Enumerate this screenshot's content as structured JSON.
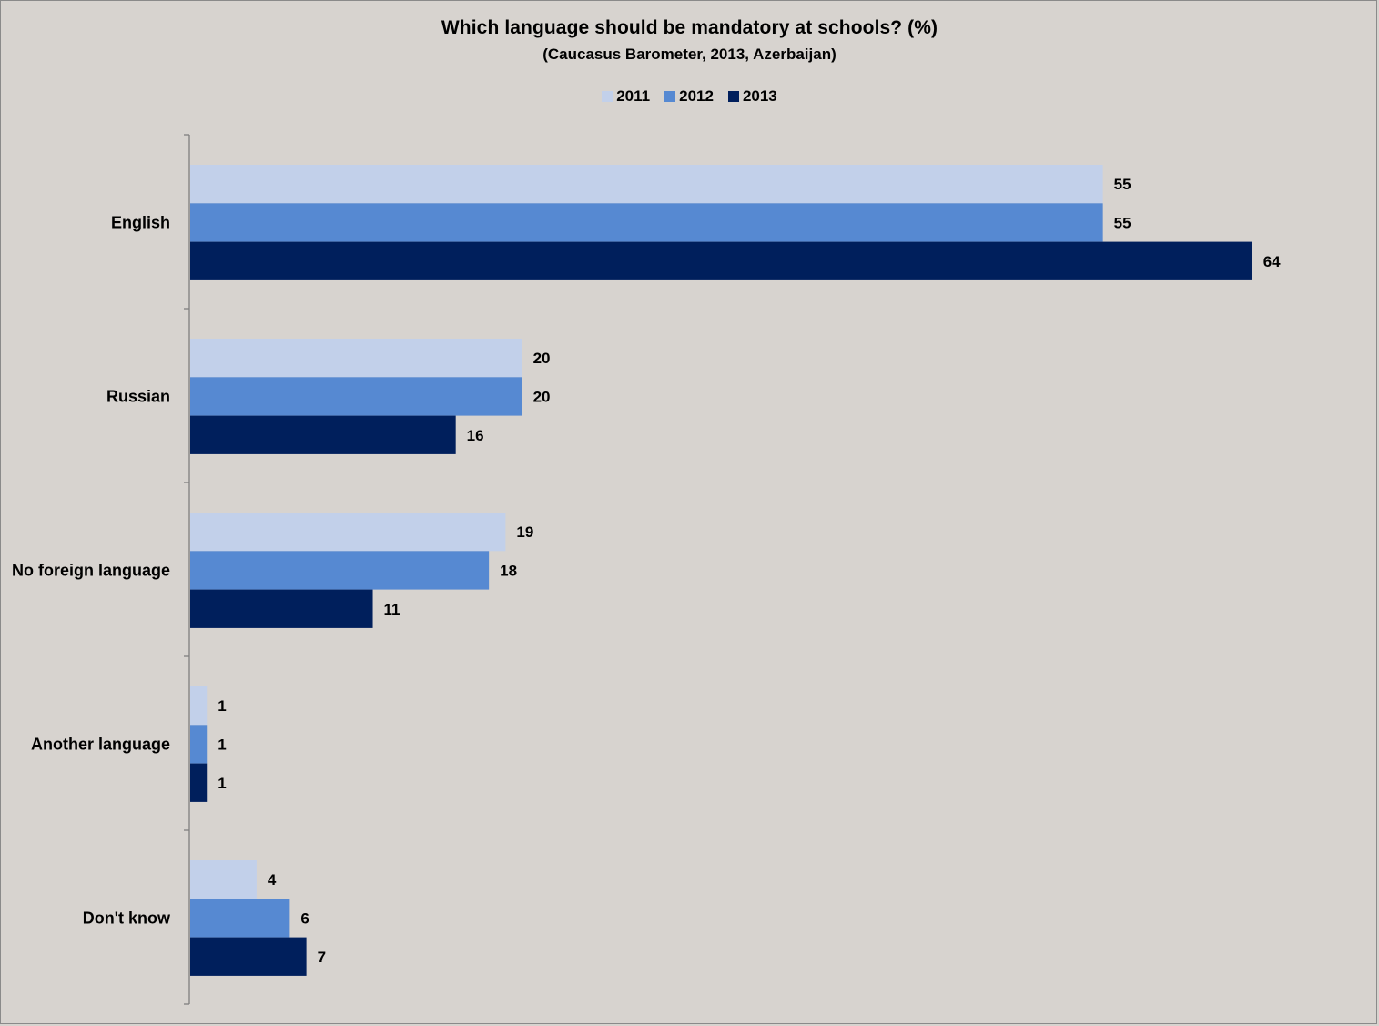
{
  "chart_data": {
    "type": "bar",
    "orientation": "horizontal",
    "title": "Which language should be mandatory at schools? (%)",
    "subtitle": "(Caucasus Barometer, 2013, Azerbaijan)",
    "categories": [
      "English",
      "Russian",
      "No foreign language",
      "Another language",
      "Don't know"
    ],
    "series": [
      {
        "name": "2011",
        "color": "#c2d0ea",
        "values": [
          55,
          20,
          19,
          1,
          4
        ]
      },
      {
        "name": "2012",
        "color": "#5689d2",
        "values": [
          55,
          20,
          18,
          1,
          6
        ]
      },
      {
        "name": "2013",
        "color": "#001f5c",
        "values": [
          64,
          16,
          11,
          1,
          7
        ]
      }
    ],
    "xlim": [
      0,
      70
    ],
    "grid": false,
    "legend": "top-center",
    "data_labels": true
  }
}
